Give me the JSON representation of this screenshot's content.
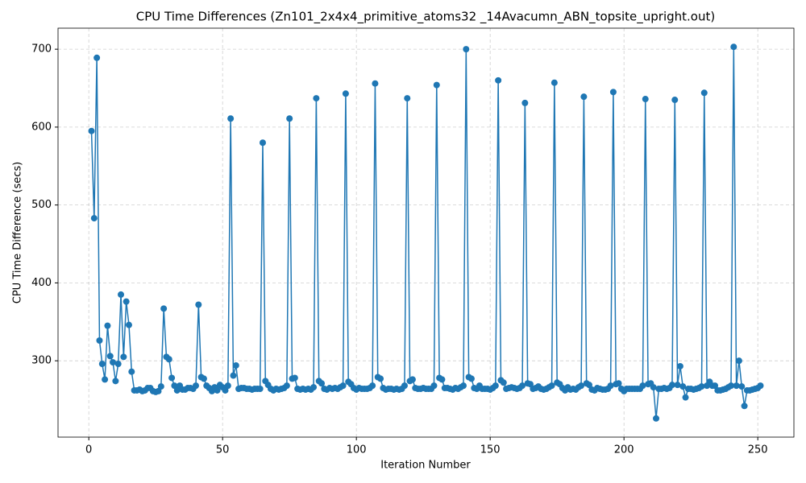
{
  "chart_data": {
    "type": "line",
    "title": "CPU Time Differences (Zn101_2x4x4_primitive_atoms32 _14Avacumn_ABN_topsite_upright.out)",
    "x_label": "Iteration Number",
    "y_label": "CPU Time Difference (secs)",
    "x": [
      1,
      2,
      3,
      4,
      5,
      6,
      7,
      8,
      9,
      10,
      11,
      12,
      13,
      14,
      15,
      16,
      17,
      18,
      19,
      20,
      21,
      22,
      23,
      24,
      25,
      26,
      27,
      28,
      29,
      30,
      31,
      32,
      33,
      34,
      35,
      36,
      37,
      38,
      39,
      40,
      41,
      42,
      43,
      44,
      45,
      46,
      47,
      48,
      49,
      50,
      51,
      52,
      53,
      54,
      55,
      56,
      57,
      58,
      59,
      60,
      61,
      62,
      63,
      64,
      65,
      66,
      67,
      68,
      69,
      70,
      71,
      72,
      73,
      74,
      75,
      76,
      77,
      78,
      79,
      80,
      81,
      82,
      83,
      84,
      85,
      86,
      87,
      88,
      89,
      90,
      91,
      92,
      93,
      94,
      95,
      96,
      97,
      98,
      99,
      100,
      101,
      102,
      103,
      104,
      105,
      106,
      107,
      108,
      109,
      110,
      111,
      112,
      113,
      114,
      115,
      116,
      117,
      118,
      119,
      120,
      121,
      122,
      123,
      124,
      125,
      126,
      127,
      128,
      129,
      130,
      131,
      132,
      133,
      134,
      135,
      136,
      137,
      138,
      139,
      140,
      141,
      142,
      143,
      144,
      145,
      146,
      147,
      148,
      149,
      150,
      151,
      152,
      153,
      154,
      155,
      156,
      157,
      158,
      159,
      160,
      161,
      162,
      163,
      164,
      165,
      166,
      167,
      168,
      169,
      170,
      171,
      172,
      173,
      174,
      175,
      176,
      177,
      178,
      179,
      180,
      181,
      182,
      183,
      184,
      185,
      186,
      187,
      188,
      189,
      190,
      191,
      192,
      193,
      194,
      195,
      196,
      197,
      198,
      199,
      200,
      201,
      202,
      203,
      204,
      205,
      206,
      207,
      208,
      209,
      210,
      211,
      212,
      213,
      214,
      215,
      216,
      217,
      218,
      219,
      220,
      221,
      222,
      223,
      224,
      225,
      226,
      227,
      228,
      229,
      230,
      231,
      232,
      233,
      234,
      235,
      236,
      237,
      238,
      239,
      240,
      241,
      242,
      243,
      244,
      245,
      246,
      247,
      248,
      249,
      250,
      251
    ],
    "values": [
      595,
      483,
      689,
      326,
      296,
      276,
      345,
      306,
      298,
      274,
      296,
      385,
      305,
      376,
      346,
      286,
      262,
      262,
      263,
      261,
      262,
      265,
      265,
      261,
      260,
      261,
      267,
      367,
      305,
      302,
      278,
      268,
      262,
      268,
      263,
      263,
      265,
      265,
      264,
      268,
      372,
      279,
      277,
      268,
      265,
      261,
      266,
      262,
      269,
      266,
      262,
      268,
      611,
      281,
      294,
      264,
      265,
      265,
      264,
      264,
      263,
      264,
      264,
      264,
      580,
      274,
      269,
      264,
      262,
      264,
      263,
      264,
      265,
      268,
      611,
      277,
      278,
      264,
      263,
      264,
      263,
      264,
      263,
      266,
      637,
      274,
      271,
      264,
      263,
      265,
      264,
      265,
      264,
      266,
      268,
      643,
      273,
      270,
      265,
      263,
      265,
      264,
      264,
      264,
      265,
      268,
      656,
      279,
      277,
      265,
      263,
      264,
      264,
      263,
      264,
      263,
      264,
      268,
      637,
      274,
      276,
      265,
      264,
      264,
      265,
      264,
      264,
      264,
      268,
      654,
      278,
      276,
      265,
      265,
      264,
      263,
      265,
      264,
      266,
      268,
      700,
      279,
      277,
      265,
      264,
      268,
      264,
      264,
      264,
      263,
      265,
      268,
      660,
      275,
      272,
      264,
      265,
      266,
      265,
      264,
      265,
      268,
      631,
      271,
      270,
      264,
      265,
      267,
      264,
      263,
      264,
      266,
      268,
      657,
      272,
      270,
      265,
      262,
      266,
      263,
      264,
      263,
      266,
      268,
      639,
      271,
      269,
      263,
      262,
      265,
      264,
      263,
      263,
      264,
      268,
      645,
      270,
      271,
      264,
      261,
      264,
      264,
      264,
      264,
      264,
      264,
      268,
      636,
      270,
      271,
      266,
      226,
      264,
      264,
      265,
      264,
      265,
      269,
      635,
      269,
      293,
      267,
      253,
      264,
      264,
      263,
      264,
      265,
      267,
      644,
      268,
      273,
      268,
      268,
      262,
      262,
      263,
      264,
      266,
      268,
      703,
      268,
      300,
      267,
      242,
      262,
      262,
      263,
      264,
      265,
      268
    ],
    "color": "#1f77b4",
    "xlim": [
      -11.5,
      263.5
    ],
    "xticks": [
      0,
      50,
      100,
      150,
      200,
      250
    ],
    "ylim": [
      202,
      727
    ],
    "yticks": [
      300,
      400,
      500,
      600,
      700
    ],
    "grid": true
  }
}
